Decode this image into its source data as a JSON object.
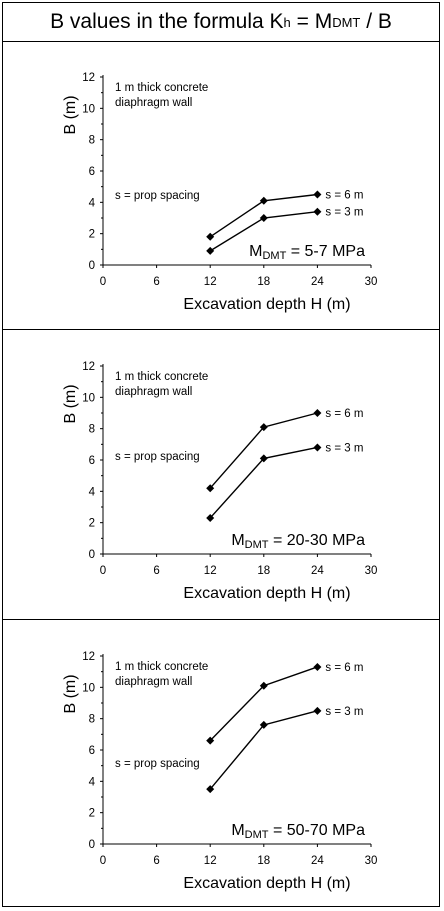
{
  "header": {
    "title_prefix": "B values in the formula K",
    "title_sub_h": "h",
    "title_mid": " = M",
    "title_sub_dmt": "DMT",
    "title_suffix": " / B"
  },
  "chart_data": [
    {
      "type": "line",
      "ylabel": "B (m)",
      "xlabel": "Excavation depth H (m)",
      "xlim": [
        0,
        30
      ],
      "ylim": [
        0,
        12
      ],
      "xticks": [
        0,
        6,
        12,
        18,
        24,
        30
      ],
      "yticks": [
        0,
        2,
        4,
        6,
        8,
        10,
        12
      ],
      "grid": false,
      "note_line1": "1 m thick concrete",
      "note_line2": "diaphragm wall",
      "spacing_note": "s = prop spacing",
      "mdmt_prefix": "M",
      "mdmt_sub": "DMT",
      "mdmt_value": " = 5-7 MPa",
      "series": [
        {
          "name": "s = 6 m",
          "x": [
            12,
            18,
            24
          ],
          "values": [
            1.8,
            4.1,
            4.5
          ]
        },
        {
          "name": "s = 3 m",
          "x": [
            12,
            18,
            24
          ],
          "values": [
            0.9,
            3.0,
            3.4
          ]
        }
      ]
    },
    {
      "type": "line",
      "ylabel": "B (m)",
      "xlabel": "Excavation depth H (m)",
      "xlim": [
        0,
        30
      ],
      "ylim": [
        0,
        12
      ],
      "xticks": [
        0,
        6,
        12,
        18,
        24,
        30
      ],
      "yticks": [
        0,
        2,
        4,
        6,
        8,
        10,
        12
      ],
      "grid": false,
      "note_line1": "1 m thick concrete",
      "note_line2": "diaphragm wall",
      "spacing_note": "s = prop spacing",
      "mdmt_prefix": "M",
      "mdmt_sub": "DMT",
      "mdmt_value": " = 20-30 MPa",
      "series": [
        {
          "name": "s = 6 m",
          "x": [
            12,
            18,
            24
          ],
          "values": [
            4.2,
            8.1,
            9.0
          ]
        },
        {
          "name": "s = 3 m",
          "x": [
            12,
            18,
            24
          ],
          "values": [
            2.3,
            6.1,
            6.8
          ]
        }
      ]
    },
    {
      "type": "line",
      "ylabel": "B (m)",
      "xlabel": "Excavation depth H (m)",
      "xlim": [
        0,
        30
      ],
      "ylim": [
        0,
        12
      ],
      "xticks": [
        0,
        6,
        12,
        18,
        24,
        30
      ],
      "yticks": [
        0,
        2,
        4,
        6,
        8,
        10,
        12
      ],
      "grid": false,
      "note_line1": "1 m thick concrete",
      "note_line2": "diaphragm wall",
      "spacing_note": "s = prop spacing",
      "mdmt_prefix": "M",
      "mdmt_sub": "DMT",
      "mdmt_value": " = 50-70 MPa",
      "series": [
        {
          "name": "s = 6 m",
          "x": [
            12,
            18,
            24
          ],
          "values": [
            6.6,
            10.1,
            11.3
          ]
        },
        {
          "name": "s = 3 m",
          "x": [
            12,
            18,
            24
          ],
          "values": [
            3.5,
            7.6,
            8.5
          ]
        }
      ]
    }
  ]
}
